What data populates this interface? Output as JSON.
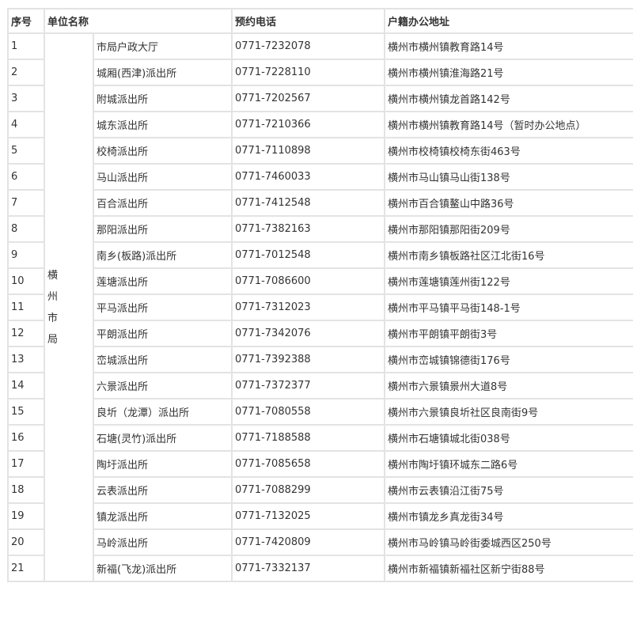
{
  "headers": {
    "index": "序号",
    "unit": "单位名称",
    "phone": "预约电话",
    "address": "户籍办公地址"
  },
  "group": {
    "label": "横州市局",
    "chars": [
      "横",
      "州",
      "市",
      "局"
    ]
  },
  "rows": [
    {
      "no": "1",
      "name": "市局户政大厅",
      "phone": "0771-7232078",
      "addr": "横州市横州镇教育路14号"
    },
    {
      "no": "2",
      "name": "城厢(西津)派出所",
      "phone": "0771-7228110",
      "addr": "横州市横州镇淮海路21号"
    },
    {
      "no": "3",
      "name": "附城派出所",
      "phone": "0771-7202567",
      "addr": "横州市横州镇龙首路142号"
    },
    {
      "no": "4",
      "name": "城东派出所",
      "phone": "0771-7210366",
      "addr": "横州市横州镇教育路14号（暂时办公地点）"
    },
    {
      "no": "5",
      "name": "校椅派出所",
      "phone": "0771-7110898",
      "addr": "横州市校椅镇校椅东街463号"
    },
    {
      "no": "6",
      "name": "马山派出所",
      "phone": "0771-7460033",
      "addr": "横州市马山镇马山街138号"
    },
    {
      "no": "7",
      "name": "百合派出所",
      "phone": "0771-7412548",
      "addr": "横州市百合镇鳌山中路36号"
    },
    {
      "no": "8",
      "name": "那阳派出所",
      "phone": "0771-7382163",
      "addr": "横州市那阳镇那阳街209号"
    },
    {
      "no": "9",
      "name": "南乡(板路)派出所",
      "phone": "0771-7012548",
      "addr": "横州市南乡镇板路社区江北街16号"
    },
    {
      "no": "10",
      "name": "莲塘派出所",
      "phone": "0771-7086600",
      "addr": "横州市莲塘镇莲州街122号"
    },
    {
      "no": "11",
      "name": "平马派出所",
      "phone": "0771-7312023",
      "addr": "横州市平马镇平马街148-1号"
    },
    {
      "no": "12",
      "name": "平朗派出所",
      "phone": "0771-7342076",
      "addr": "横州市平朗镇平朗街3号"
    },
    {
      "no": "13",
      "name": "峦城派出所",
      "phone": "0771-7392388",
      "addr": "横州市峦城镇锦德街176号"
    },
    {
      "no": "14",
      "name": "六景派出所",
      "phone": "0771-7372377",
      "addr": "横州市六景镇景州大道8号"
    },
    {
      "no": "15",
      "name": "良圻（龙潭）派出所",
      "phone": "0771-7080558",
      "addr": "横州市六景镇良圻社区良南街9号"
    },
    {
      "no": "16",
      "name": "石塘(灵竹)派出所",
      "phone": "0771-7188588",
      "addr": "横州市石塘镇城北街038号"
    },
    {
      "no": "17",
      "name": "陶圩派出所",
      "phone": "0771-7085658",
      "addr": "横州市陶圩镇环城东二路6号"
    },
    {
      "no": "18",
      "name": "云表派出所",
      "phone": "0771-7088299",
      "addr": "横州市云表镇沿江街75号"
    },
    {
      "no": "19",
      "name": "镇龙派出所",
      "phone": "0771-7132025",
      "addr": "横州市镇龙乡真龙街34号"
    },
    {
      "no": "20",
      "name": "马岭派出所",
      "phone": "0771-7420809",
      "addr": "横州市马岭镇马岭街委城西区250号"
    },
    {
      "no": "21",
      "name": "新福(飞龙)派出所",
      "phone": "0771-7332137",
      "addr": "横州市新福镇新福社区新宁街88号"
    }
  ]
}
